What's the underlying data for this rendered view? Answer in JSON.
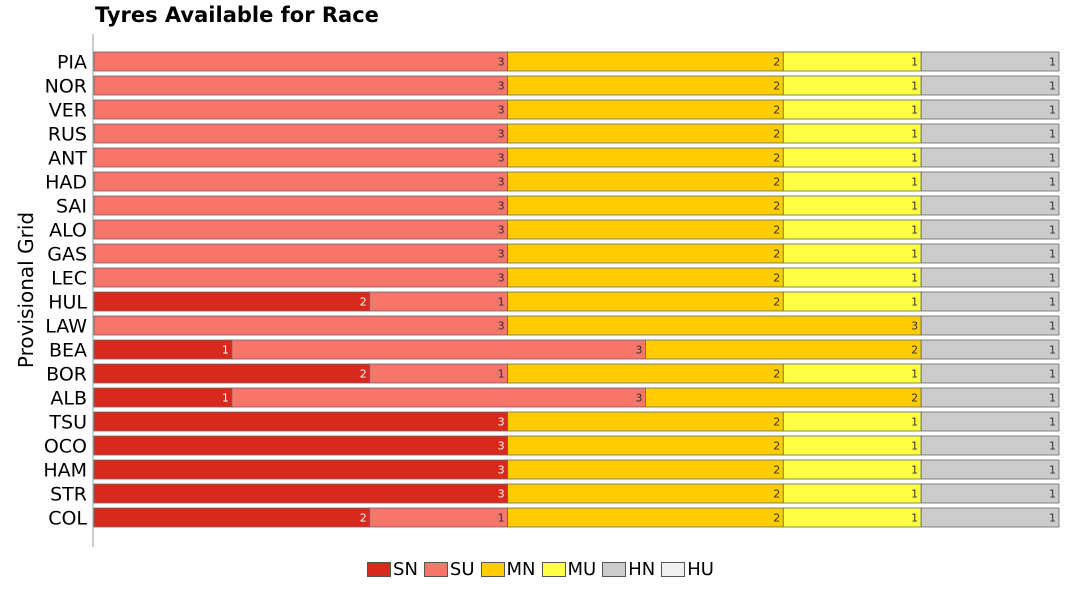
{
  "chart_data": {
    "type": "bar",
    "orientation": "horizontal",
    "stacked": true,
    "title": "Tyres Available for Race",
    "ylabel": "Provisional Grid",
    "xlabel": "",
    "categories": [
      "PIA",
      "NOR",
      "VER",
      "RUS",
      "ANT",
      "HAD",
      "SAI",
      "ALO",
      "GAS",
      "LEC",
      "HUL",
      "LAW",
      "BEA",
      "BOR",
      "ALB",
      "TSU",
      "OCO",
      "HAM",
      "STR",
      "COL"
    ],
    "series": [
      {
        "name": "SN",
        "color": "#d9291c",
        "values": [
          0,
          0,
          0,
          0,
          0,
          0,
          0,
          0,
          0,
          0,
          2,
          0,
          1,
          2,
          1,
          3,
          3,
          3,
          3,
          2
        ]
      },
      {
        "name": "SU",
        "color": "#f7756b",
        "values": [
          3,
          3,
          3,
          3,
          3,
          3,
          3,
          3,
          3,
          3,
          1,
          3,
          3,
          1,
          3,
          0,
          0,
          0,
          0,
          1
        ]
      },
      {
        "name": "MN",
        "color": "#ffcc00",
        "values": [
          2,
          2,
          2,
          2,
          2,
          2,
          2,
          2,
          2,
          2,
          2,
          3,
          2,
          2,
          2,
          2,
          2,
          2,
          2,
          2
        ]
      },
      {
        "name": "MU",
        "color": "#ffff44",
        "values": [
          1,
          1,
          1,
          1,
          1,
          1,
          1,
          1,
          1,
          1,
          1,
          0,
          0,
          1,
          0,
          1,
          1,
          1,
          1,
          1
        ]
      },
      {
        "name": "HN",
        "color": "#cccccc",
        "values": [
          1,
          1,
          1,
          1,
          1,
          1,
          1,
          1,
          1,
          1,
          1,
          1,
          1,
          1,
          1,
          1,
          1,
          1,
          1,
          1
        ]
      },
      {
        "name": "HU",
        "color": "#f0f0f0",
        "values": [
          0,
          0,
          0,
          0,
          0,
          0,
          0,
          0,
          0,
          0,
          0,
          0,
          0,
          0,
          0,
          0,
          0,
          0,
          0,
          0
        ]
      }
    ],
    "xlim": [
      0,
      7
    ],
    "grid": false,
    "legend": "bottom-center"
  }
}
